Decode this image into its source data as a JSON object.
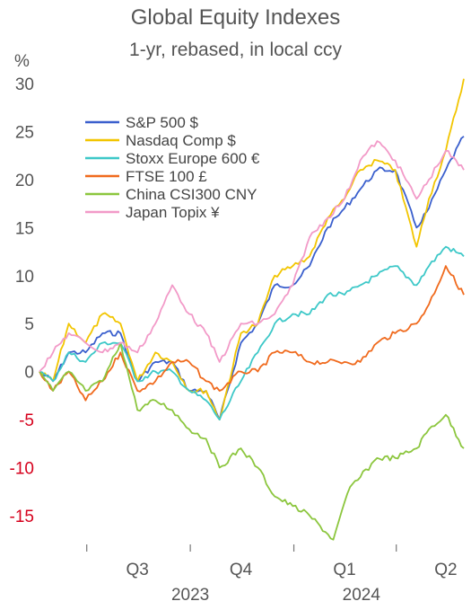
{
  "title": "Global Equity Indexes",
  "subtitle": "1-yr, rebased, in local ccy",
  "y_unit": "%",
  "chart_data": {
    "type": "line",
    "title": "Global Equity Indexes",
    "subtitle": "1-yr, rebased, in local ccy",
    "xlabel": "",
    "ylabel": "%",
    "ylim": [
      -18,
      30
    ],
    "xlim": [
      "2023-05-20",
      "2024-05-31"
    ],
    "yticks": [
      30,
      25,
      20,
      15,
      10,
      5,
      0,
      -5,
      -10,
      -15
    ],
    "negative_tick_color": "#d6001c",
    "quarter_labels": [
      {
        "label": "Q3",
        "date": "2023-08-15"
      },
      {
        "label": "Q4",
        "date": "2023-11-15"
      },
      {
        "label": "Q1",
        "date": "2024-02-15"
      },
      {
        "label": "Q2",
        "date": "2024-05-15"
      }
    ],
    "year_labels": [
      {
        "label": "2023",
        "date": "2023-10-01"
      },
      {
        "label": "2024",
        "date": "2024-03-01"
      }
    ],
    "grid": false,
    "legend_position": "top-left",
    "series": [
      {
        "name": "S&P 500 $",
        "color": "#3a5fcd",
        "points": [
          [
            "2023-05-20",
            0
          ],
          [
            "2023-06-01",
            -1
          ],
          [
            "2023-06-15",
            2
          ],
          [
            "2023-06-30",
            2
          ],
          [
            "2023-07-15",
            4
          ],
          [
            "2023-07-31",
            4
          ],
          [
            "2023-08-15",
            -1
          ],
          [
            "2023-08-31",
            1
          ],
          [
            "2023-09-15",
            1
          ],
          [
            "2023-09-30",
            -2
          ],
          [
            "2023-10-15",
            -2
          ],
          [
            "2023-10-27",
            -5
          ],
          [
            "2023-11-15",
            3
          ],
          [
            "2023-11-30",
            5
          ],
          [
            "2023-12-15",
            9
          ],
          [
            "2023-12-31",
            9
          ],
          [
            "2024-01-15",
            11
          ],
          [
            "2024-01-31",
            15
          ],
          [
            "2024-02-15",
            17
          ],
          [
            "2024-02-29",
            19
          ],
          [
            "2024-03-15",
            21
          ],
          [
            "2024-03-31",
            21
          ],
          [
            "2024-04-19",
            15
          ],
          [
            "2024-04-30",
            17
          ],
          [
            "2024-05-15",
            21
          ],
          [
            "2024-05-31",
            24.5
          ]
        ]
      },
      {
        "name": "Nasdaq Comp $",
        "color": "#f2c500",
        "points": [
          [
            "2023-05-20",
            0
          ],
          [
            "2023-06-01",
            -1
          ],
          [
            "2023-06-15",
            5
          ],
          [
            "2023-06-30",
            3
          ],
          [
            "2023-07-15",
            6
          ],
          [
            "2023-07-31",
            5
          ],
          [
            "2023-08-15",
            -1
          ],
          [
            "2023-08-31",
            2
          ],
          [
            "2023-09-15",
            1
          ],
          [
            "2023-09-30",
            -2
          ],
          [
            "2023-10-15",
            -2
          ],
          [
            "2023-10-27",
            -5
          ],
          [
            "2023-11-15",
            4
          ],
          [
            "2023-11-30",
            5
          ],
          [
            "2023-12-15",
            10
          ],
          [
            "2023-12-31",
            11
          ],
          [
            "2024-01-15",
            12
          ],
          [
            "2024-01-31",
            16
          ],
          [
            "2024-02-15",
            18
          ],
          [
            "2024-02-29",
            21
          ],
          [
            "2024-03-15",
            22
          ],
          [
            "2024-03-31",
            21
          ],
          [
            "2024-04-19",
            13
          ],
          [
            "2024-04-30",
            18
          ],
          [
            "2024-05-15",
            23
          ],
          [
            "2024-05-31",
            30.5
          ]
        ]
      },
      {
        "name": "Stoxx Europe 600 €",
        "color": "#3dc8c8",
        "points": [
          [
            "2023-05-20",
            0
          ],
          [
            "2023-06-01",
            -1
          ],
          [
            "2023-06-15",
            2
          ],
          [
            "2023-06-30",
            1
          ],
          [
            "2023-07-15",
            3
          ],
          [
            "2023-07-31",
            3
          ],
          [
            "2023-08-15",
            -1
          ],
          [
            "2023-08-31",
            0
          ],
          [
            "2023-09-15",
            0
          ],
          [
            "2023-09-30",
            -2
          ],
          [
            "2023-10-15",
            -3
          ],
          [
            "2023-10-27",
            -5
          ],
          [
            "2023-11-15",
            -1
          ],
          [
            "2023-11-30",
            2
          ],
          [
            "2023-12-15",
            5
          ],
          [
            "2023-12-31",
            6
          ],
          [
            "2024-01-15",
            6
          ],
          [
            "2024-01-31",
            8
          ],
          [
            "2024-02-15",
            8
          ],
          [
            "2024-02-29",
            9
          ],
          [
            "2024-03-15",
            10
          ],
          [
            "2024-03-31",
            11
          ],
          [
            "2024-04-19",
            9
          ],
          [
            "2024-04-30",
            11
          ],
          [
            "2024-05-15",
            13
          ],
          [
            "2024-05-31",
            12
          ]
        ]
      },
      {
        "name": "FTSE 100 £",
        "color": "#f06a1d",
        "points": [
          [
            "2023-05-20",
            0
          ],
          [
            "2023-06-01",
            -2
          ],
          [
            "2023-06-15",
            0
          ],
          [
            "2023-06-30",
            -3
          ],
          [
            "2023-07-15",
            -1
          ],
          [
            "2023-07-31",
            2
          ],
          [
            "2023-08-15",
            -2
          ],
          [
            "2023-08-31",
            -1
          ],
          [
            "2023-09-15",
            1
          ],
          [
            "2023-09-30",
            1
          ],
          [
            "2023-10-15",
            -1
          ],
          [
            "2023-10-27",
            -2
          ],
          [
            "2023-11-15",
            0
          ],
          [
            "2023-11-30",
            0
          ],
          [
            "2023-12-15",
            2
          ],
          [
            "2023-12-31",
            2
          ],
          [
            "2024-01-15",
            1
          ],
          [
            "2024-01-31",
            1
          ],
          [
            "2024-02-15",
            1
          ],
          [
            "2024-02-29",
            1
          ],
          [
            "2024-03-15",
            3
          ],
          [
            "2024-03-31",
            4
          ],
          [
            "2024-04-19",
            5
          ],
          [
            "2024-04-30",
            7
          ],
          [
            "2024-05-15",
            11
          ],
          [
            "2024-05-31",
            8
          ]
        ]
      },
      {
        "name": "China CSI300 CNY",
        "color": "#8cc63e",
        "points": [
          [
            "2023-05-20",
            0
          ],
          [
            "2023-06-01",
            -2
          ],
          [
            "2023-06-15",
            0
          ],
          [
            "2023-06-30",
            -2
          ],
          [
            "2023-07-15",
            -1
          ],
          [
            "2023-07-31",
            3
          ],
          [
            "2023-08-15",
            -4
          ],
          [
            "2023-08-31",
            -3
          ],
          [
            "2023-09-15",
            -4
          ],
          [
            "2023-09-30",
            -6
          ],
          [
            "2023-10-15",
            -7
          ],
          [
            "2023-10-27",
            -10
          ],
          [
            "2023-11-15",
            -8
          ],
          [
            "2023-11-30",
            -10
          ],
          [
            "2023-12-15",
            -13
          ],
          [
            "2023-12-31",
            -14
          ],
          [
            "2024-01-15",
            -15
          ],
          [
            "2024-02-05",
            -17.5
          ],
          [
            "2024-02-20",
            -12
          ],
          [
            "2024-02-29",
            -11
          ],
          [
            "2024-03-15",
            -9
          ],
          [
            "2024-03-31",
            -9
          ],
          [
            "2024-04-19",
            -8
          ],
          [
            "2024-04-30",
            -6
          ],
          [
            "2024-05-15",
            -4.5
          ],
          [
            "2024-05-31",
            -8
          ]
        ]
      },
      {
        "name": "Japan Topix ¥",
        "color": "#f29ac8",
        "points": [
          [
            "2023-05-20",
            0
          ],
          [
            "2023-06-01",
            2
          ],
          [
            "2023-06-15",
            4
          ],
          [
            "2023-06-30",
            3
          ],
          [
            "2023-07-15",
            2
          ],
          [
            "2023-07-31",
            3
          ],
          [
            "2023-08-15",
            2
          ],
          [
            "2023-08-31",
            5
          ],
          [
            "2023-09-15",
            9
          ],
          [
            "2023-09-30",
            6
          ],
          [
            "2023-10-15",
            4
          ],
          [
            "2023-10-27",
            1
          ],
          [
            "2023-11-15",
            5
          ],
          [
            "2023-11-30",
            5
          ],
          [
            "2023-12-15",
            6
          ],
          [
            "2023-12-31",
            9
          ],
          [
            "2024-01-15",
            14
          ],
          [
            "2024-01-31",
            16
          ],
          [
            "2024-02-15",
            18
          ],
          [
            "2024-02-29",
            22
          ],
          [
            "2024-03-15",
            24
          ],
          [
            "2024-03-31",
            22
          ],
          [
            "2024-04-19",
            18
          ],
          [
            "2024-04-30",
            20
          ],
          [
            "2024-05-15",
            23
          ],
          [
            "2024-05-31",
            21
          ]
        ]
      }
    ]
  }
}
